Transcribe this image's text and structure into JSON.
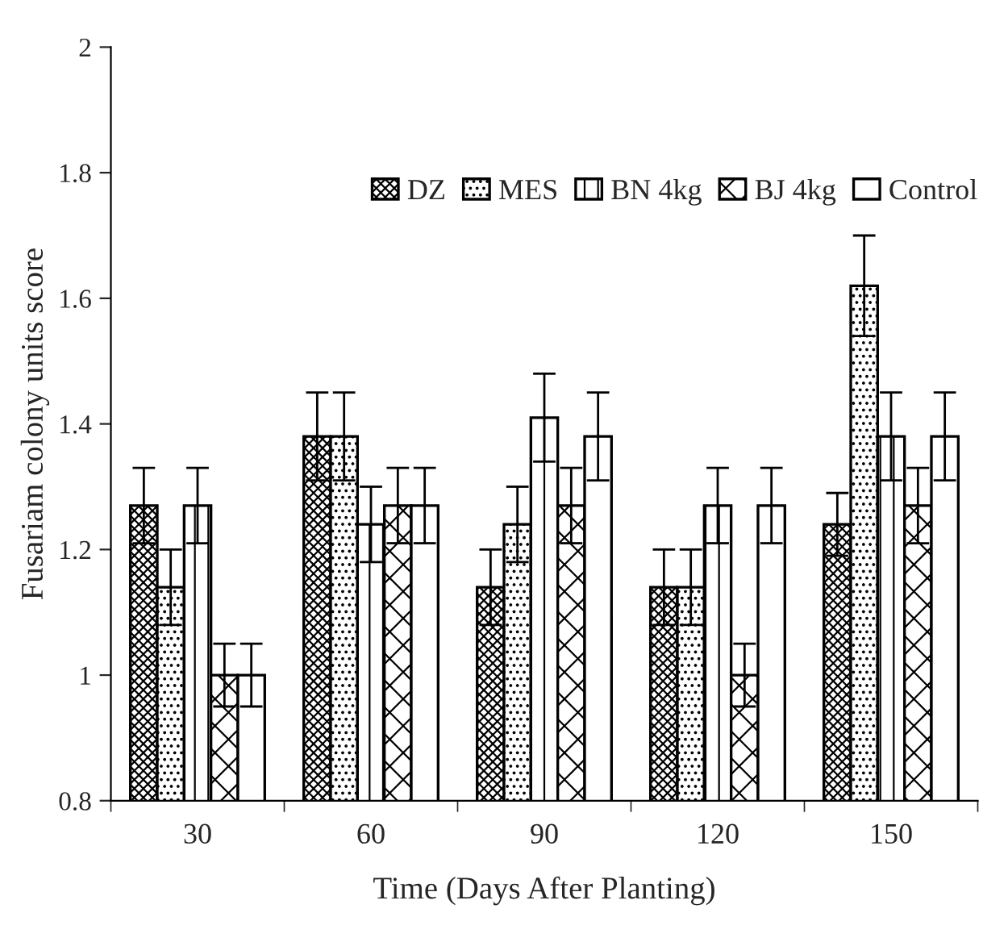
{
  "chart_data": {
    "type": "bar",
    "xlabel": "Time (Days After Planting)",
    "ylabel": "Fusariam colony units score",
    "categories": [
      "30",
      "60",
      "90",
      "120",
      "150"
    ],
    "series": [
      {
        "name": "DZ",
        "color": "#000000",
        "values": [
          1.27,
          1.38,
          1.14,
          1.14,
          1.24
        ],
        "errors": [
          0.06,
          0.07,
          0.06,
          0.06,
          0.05
        ]
      },
      {
        "name": "MES",
        "color": "#000000",
        "values": [
          1.14,
          1.38,
          1.24,
          1.14,
          1.62
        ],
        "errors": [
          0.06,
          0.07,
          0.06,
          0.06,
          0.08
        ]
      },
      {
        "name": "BN 4kg",
        "color": "#000000",
        "values": [
          1.27,
          1.24,
          1.41,
          1.27,
          1.38
        ],
        "errors": [
          0.06,
          0.06,
          0.07,
          0.06,
          0.07
        ]
      },
      {
        "name": "BJ 4kg",
        "color": "#000000",
        "values": [
          1.0,
          1.27,
          1.27,
          1.0,
          1.27
        ],
        "errors": [
          0.05,
          0.06,
          0.06,
          0.05,
          0.06
        ]
      },
      {
        "name": "Control",
        "color": "#000000",
        "values": [
          1.0,
          1.27,
          1.38,
          1.27,
          1.38
        ],
        "errors": [
          0.05,
          0.06,
          0.07,
          0.06,
          0.07
        ]
      }
    ],
    "ylim": [
      0.8,
      2
    ],
    "yticks": [
      0.8,
      1,
      1.2,
      1.4,
      1.6,
      1.8,
      2
    ],
    "grid": false,
    "legend": "top right"
  }
}
